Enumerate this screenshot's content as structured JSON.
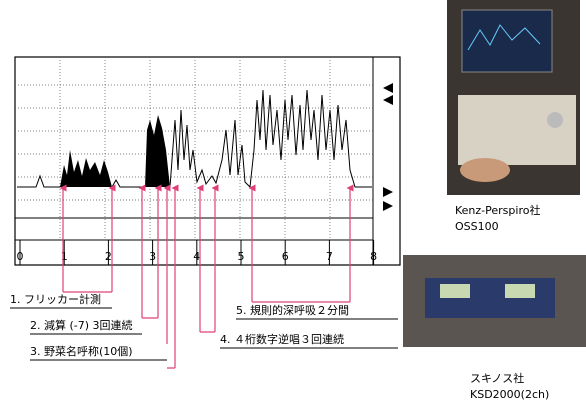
{
  "chart": {
    "time_labels": [
      "0",
      "1",
      "2",
      "3",
      "4",
      "5",
      "6",
      "7",
      "8"
    ]
  },
  "annotations": [
    {
      "text": "1. フリッカー計測"
    },
    {
      "text": "2. 減算 (-7) 3回連続"
    },
    {
      "text": "3. 野菜名呼称(10個)"
    },
    {
      "text": "4. ４桁数字逆唱３回連続"
    },
    {
      "text": "5. 規則的深呼吸２分間"
    }
  ],
  "photos": [
    {
      "caption": [
        "Kenz-Perspiro社",
        "OSS100"
      ]
    },
    {
      "caption": [
        "スキノス社",
        "KSD2000(2ch)"
      ]
    }
  ]
}
